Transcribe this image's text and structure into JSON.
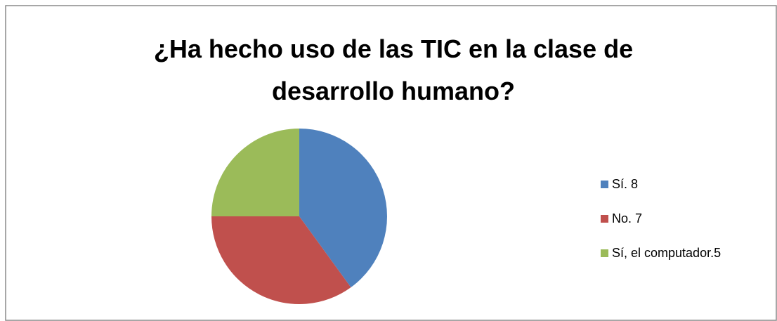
{
  "chart_data": {
    "type": "pie",
    "title": "¿Ha hecho uso de las TIC en la clase de desarrollo humano?",
    "categories": [
      "Sí. 8",
      "No. 7",
      "Sí, el computador.5"
    ],
    "values": [
      8,
      7,
      5
    ],
    "colors": [
      "#4f81bd",
      "#c0504d",
      "#9bbb59"
    ],
    "legend": "right"
  }
}
